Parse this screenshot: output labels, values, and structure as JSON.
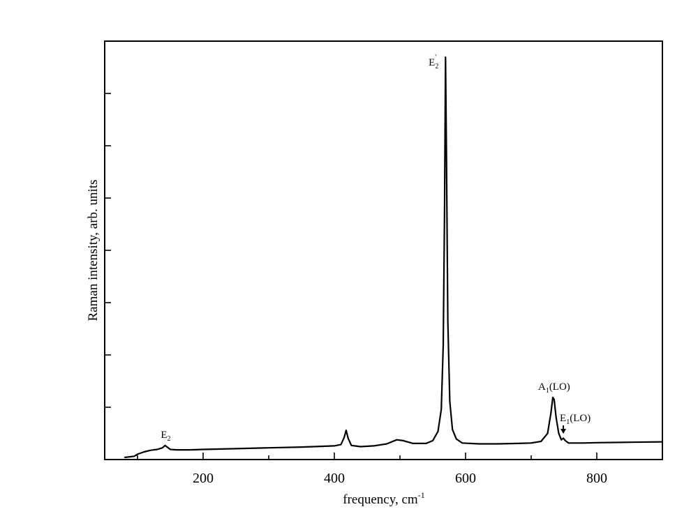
{
  "chart_data": {
    "type": "line",
    "xlabel": "frequency, cm",
    "xlabel_sup": "-1",
    "ylabel": "Raman intensity, arb. units",
    "xlim": [
      50,
      900
    ],
    "ylim": [
      0,
      100
    ],
    "x_ticks_major": [
      200,
      400,
      600,
      800
    ],
    "x_ticks_minor": [
      100,
      300,
      500,
      700
    ],
    "y_ticks_count": 7,
    "grid": false,
    "series": [
      {
        "x": [
          80,
          95,
          100,
          110,
          120,
          130,
          138,
          142,
          146,
          150,
          160,
          180,
          200,
          250,
          300,
          350,
          400,
          410,
          415,
          418,
          421,
          426,
          440,
          460,
          480,
          495,
          505,
          520,
          540,
          550,
          558,
          563,
          566,
          568,
          569.5,
          571,
          573,
          576,
          580,
          586,
          595,
          620,
          650,
          680,
          700,
          715,
          725,
          730,
          733,
          735,
          738,
          742,
          746,
          749,
          752,
          757,
          765,
          780,
          800,
          850,
          900
        ],
        "y": [
          0,
          0.3,
          0.8,
          1.4,
          1.8,
          2.0,
          2.4,
          3.0,
          2.5,
          2.0,
          1.9,
          1.9,
          2.0,
          2.2,
          2.4,
          2.6,
          2.9,
          3.2,
          5.0,
          6.8,
          4.8,
          3.0,
          2.7,
          2.9,
          3.4,
          4.4,
          4.2,
          3.5,
          3.5,
          4.2,
          6.5,
          12.0,
          28.0,
          62.0,
          100.0,
          74.0,
          34.0,
          14.0,
          7.0,
          4.6,
          3.6,
          3.4,
          3.4,
          3.5,
          3.6,
          4.0,
          6.0,
          11.0,
          15.0,
          14.5,
          10.0,
          6.0,
          4.4,
          4.8,
          4.2,
          3.6,
          3.6,
          3.6,
          3.7,
          3.8,
          3.9
        ]
      }
    ],
    "annotations": {
      "e2": {
        "main": "E",
        "sub": "2",
        "x": 143
      },
      "e2prime": {
        "main": "E",
        "sub": "2",
        "prime": "'",
        "x": 569.5
      },
      "a1lo": {
        "main": "A",
        "sub": "1",
        "rest": "(LO)",
        "x": 735
      },
      "e1lo": {
        "main": "E",
        "sub": "1",
        "rest": "(LO)",
        "x": 749
      }
    }
  }
}
